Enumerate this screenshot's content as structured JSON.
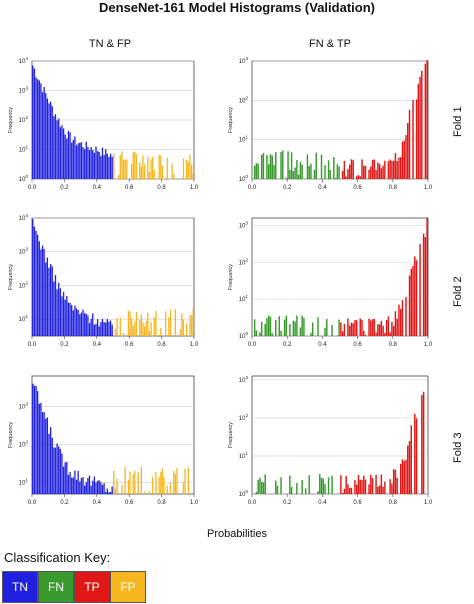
{
  "title": "DenseNet-161 Model Histograms (Validation)",
  "column_headers": [
    "TN & FP",
    "FN & TP"
  ],
  "row_headers": [
    "Fold 1",
    "Fold 2",
    "Fold 3"
  ],
  "x_axis_label": "Probabilities",
  "key": {
    "title": "Classification Key:",
    "items": [
      {
        "label": "TN",
        "color": "#2020e0"
      },
      {
        "label": "FN",
        "color": "#3a9a2e"
      },
      {
        "label": "TP",
        "color": "#e01818"
      },
      {
        "label": "FP",
        "color": "#f6b61e"
      }
    ]
  },
  "chart_data": [
    {
      "type": "bar",
      "fold": "Fold 1",
      "panel": "TN & FP",
      "scale": "log",
      "ylabel": "Frequency",
      "xlim": [
        0,
        1
      ],
      "xticks": [
        "0.0",
        "0.2",
        "0.4",
        "0.6",
        "0.8",
        "1.0"
      ],
      "yticks": [
        "10^0",
        "10^1",
        "10^2",
        "10^3",
        "10^4"
      ],
      "ylim_log": [
        0,
        4
      ],
      "series": [
        {
          "name": "TN",
          "range": [
            0,
            0.5
          ],
          "peak": 8000,
          "decay": "steep"
        },
        {
          "name": "FP",
          "range": [
            0.5,
            1.0
          ],
          "level": 5
        }
      ]
    },
    {
      "type": "bar",
      "fold": "Fold 1",
      "panel": "FN & TP",
      "scale": "log",
      "ylabel": "Frequency",
      "xlim": [
        0,
        1
      ],
      "xticks": [
        "0.0",
        "0.2",
        "0.4",
        "0.6",
        "0.8",
        "1.0"
      ],
      "yticks": [
        "10^0",
        "10^1",
        "10^2",
        "10^3"
      ],
      "ylim_log": [
        0,
        3
      ],
      "series": [
        {
          "name": "FN",
          "range": [
            0,
            0.5
          ],
          "level": 3
        },
        {
          "name": "TP",
          "range": [
            0.5,
            1.0
          ],
          "peak": 1500,
          "rise": "steep"
        }
      ]
    },
    {
      "type": "bar",
      "fold": "Fold 2",
      "panel": "TN & FP",
      "scale": "log",
      "ylabel": "Frequency",
      "xlim": [
        0,
        1
      ],
      "xticks": [
        "0.0",
        "0.2",
        "0.4",
        "0.6",
        "0.8",
        "1.0"
      ],
      "yticks": [
        "10^1",
        "10^2",
        "10^3",
        "10^4"
      ],
      "ylim_log": [
        0.5,
        4
      ],
      "series": [
        {
          "name": "TN",
          "range": [
            0,
            0.5
          ],
          "peak": 8000,
          "decay": "steep"
        },
        {
          "name": "FP",
          "range": [
            0.5,
            1.0
          ],
          "level": 12
        }
      ]
    },
    {
      "type": "bar",
      "fold": "Fold 2",
      "panel": "FN & TP",
      "scale": "log",
      "ylabel": "Frequency",
      "xlim": [
        0,
        1
      ],
      "xticks": [
        "0.0",
        "0.2",
        "0.4",
        "0.6",
        "0.8",
        "1.0"
      ],
      "yticks": [
        "10^0",
        "10^1",
        "10^2",
        "10^3"
      ],
      "ylim_log": [
        0,
        3.2
      ],
      "series": [
        {
          "name": "FN",
          "range": [
            0,
            0.5
          ],
          "level": 2
        },
        {
          "name": "TP",
          "range": [
            0.5,
            1.0
          ],
          "peak": 1500,
          "rise": "steep"
        }
      ]
    },
    {
      "type": "bar",
      "fold": "Fold 3",
      "panel": "TN & FP",
      "scale": "log",
      "ylabel": "Frequency",
      "xlim": [
        0,
        1
      ],
      "xticks": [
        "0.0",
        "0.2",
        "0.4",
        "0.6",
        "0.8",
        "1.0"
      ],
      "yticks": [
        "10^1",
        "10^2",
        "10^3"
      ],
      "ylim_log": [
        0.7,
        3.8
      ],
      "series": [
        {
          "name": "TN",
          "range": [
            0,
            0.5
          ],
          "peak": 5000,
          "decay": "steep"
        },
        {
          "name": "FP",
          "range": [
            0.5,
            1.0
          ],
          "level": 15
        }
      ]
    },
    {
      "type": "bar",
      "fold": "Fold 3",
      "panel": "FN & TP",
      "scale": "log",
      "ylabel": "Frequency",
      "xlim": [
        0,
        1
      ],
      "xticks": [
        "0.0",
        "0.2",
        "0.4",
        "0.6",
        "0.8",
        "1.0"
      ],
      "yticks": [
        "10^0",
        "10^1",
        "10^2",
        "10^3"
      ],
      "ylim_log": [
        0,
        3.1
      ],
      "series": [
        {
          "name": "FN",
          "range": [
            0,
            0.5
          ],
          "level": 2
        },
        {
          "name": "TP",
          "range": [
            0.5,
            1.0
          ],
          "peak": 1200,
          "rise": "steep"
        }
      ]
    }
  ]
}
